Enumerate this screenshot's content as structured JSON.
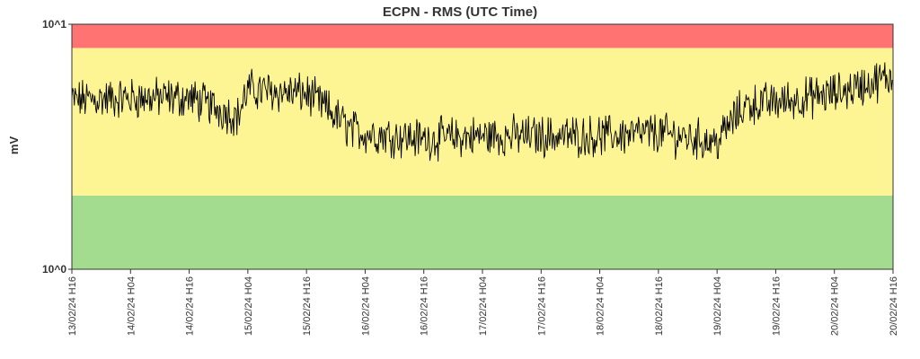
{
  "chart_data": {
    "type": "line",
    "title": "ECPN - RMS (UTC Time)",
    "ylabel": "mV",
    "xlabel": "",
    "y_scale": "log",
    "ylim": [
      1,
      10
    ],
    "xlim": [
      "13/02/24 H16",
      "20/02/24 H16"
    ],
    "ytick_labels": [
      "10^0",
      "10^1"
    ],
    "xtick_labels": [
      "13/02/24 H16",
      "14/02/24 H04",
      "14/02/24 H16",
      "15/02/24 H04",
      "15/02/24 H16",
      "16/02/24 H04",
      "16/02/24 H16",
      "17/02/24 H04",
      "17/02/24 H16",
      "18/02/24 H04",
      "18/02/24 H16",
      "19/02/24 H04",
      "19/02/24 H16",
      "20/02/24 H04",
      "20/02/24 H16"
    ],
    "bands": [
      {
        "from": 1,
        "to": 2.0,
        "color": "#a3dc8f"
      },
      {
        "from": 2.0,
        "to": 8.0,
        "color": "#fdf594"
      },
      {
        "from": 8.0,
        "to": 10,
        "color": "#ff7373"
      }
    ],
    "line_color": "#000000",
    "series": [
      {
        "x": [
          "13/02/24 H16",
          "14/02/24 H04",
          "14/02/24 H16",
          "15/02/24 H02",
          "15/02/24 H04",
          "15/02/24 H16",
          "16/02/24 H01",
          "16/02/24 H04",
          "16/02/24 H16",
          "17/02/24 H04",
          "17/02/24 H16",
          "18/02/24 H04",
          "18/02/24 H16",
          "19/02/24 H04",
          "19/02/24 H10",
          "19/02/24 H16",
          "20/02/24 H04",
          "20/02/24 H16"
        ],
        "values": [
          4.9,
          5.0,
          5.0,
          4.2,
          5.4,
          5.2,
          3.7,
          3.6,
          3.4,
          3.5,
          3.5,
          3.5,
          3.6,
          3.3,
          4.7,
          4.8,
          5.2,
          6.1
        ]
      }
    ]
  }
}
